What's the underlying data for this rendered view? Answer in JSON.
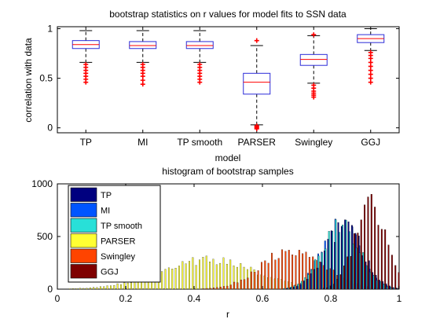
{
  "chart_data": [
    {
      "type": "boxplot",
      "title": "bootstrap statistics on r values for model fits to SSN data",
      "xlabel": "model",
      "ylabel": "correlation with data",
      "ylim": [
        -0.05,
        1.02
      ],
      "yticks": [
        0,
        0.5,
        1
      ],
      "ytick_labels": [
        "0",
        "0.5",
        "1"
      ],
      "categories": [
        "TP",
        "MI",
        "TP smooth",
        "PARSER",
        "Swingley",
        "GGJ"
      ],
      "boxes": [
        {
          "whisker_low": 0.66,
          "q1": 0.8,
          "median": 0.84,
          "q3": 0.88,
          "whisker_high": 0.98,
          "outliers": [
            0.64,
            0.61,
            0.58,
            0.55,
            0.52,
            0.49,
            0.46
          ]
        },
        {
          "whisker_low": 0.66,
          "q1": 0.8,
          "median": 0.83,
          "q3": 0.87,
          "whisker_high": 0.98,
          "outliers": [
            0.64,
            0.61,
            0.58,
            0.55,
            0.52,
            0.48,
            0.44
          ]
        },
        {
          "whisker_low": 0.66,
          "q1": 0.8,
          "median": 0.83,
          "q3": 0.87,
          "whisker_high": 0.98,
          "outliers": [
            0.64,
            0.61,
            0.58,
            0.55,
            0.52,
            0.49,
            0.46
          ]
        },
        {
          "whisker_low": 0.03,
          "q1": 0.34,
          "median": 0.46,
          "q3": 0.55,
          "whisker_high": 0.83,
          "outliers": [
            0.88,
            0.02,
            0.01,
            0.0,
            -0.01
          ]
        },
        {
          "whisker_low": 0.45,
          "q1": 0.63,
          "median": 0.69,
          "q3": 0.74,
          "whisker_high": 0.93,
          "outliers": [
            0.94,
            0.43,
            0.4,
            0.37,
            0.35,
            0.33,
            0.31
          ]
        },
        {
          "whisker_low": 0.78,
          "q1": 0.86,
          "median": 0.9,
          "q3": 0.94,
          "whisker_high": 1.0,
          "outliers": [
            0.76,
            0.73,
            0.7,
            0.66,
            0.62,
            0.58,
            0.54,
            0.5,
            0.46
          ]
        }
      ],
      "box_color": "#2b2bd8",
      "median_color": "#ff0000",
      "outlier_color": "#ff0000",
      "whisker_color": "#000000"
    },
    {
      "type": "histogram",
      "title": "histogram of bootstrap samples",
      "xlabel": "r",
      "ylabel": "",
      "xlim": [
        0,
        1
      ],
      "ylim": [
        0,
        1000
      ],
      "xticks": [
        0,
        0.2,
        0.4,
        0.6,
        0.8,
        1
      ],
      "xtick_labels": [
        "0",
        "0.2",
        "0.4",
        "0.6",
        "0.8",
        "1"
      ],
      "yticks": [
        0,
        500,
        1000
      ],
      "ytick_labels": [
        "0",
        "500",
        "1000"
      ],
      "legend_position": "top-left",
      "series": [
        {
          "name": "TP",
          "color": "#00007f",
          "distribution": {
            "mean": 0.84,
            "sd": 0.055,
            "peak": 600
          }
        },
        {
          "name": "MI",
          "color": "#0055ff",
          "distribution": {
            "mean": 0.83,
            "sd": 0.055,
            "peak": 620
          }
        },
        {
          "name": "TP smooth",
          "color": "#28e0d8",
          "distribution": {
            "mean": 0.83,
            "sd": 0.055,
            "peak": 610
          }
        },
        {
          "name": "PARSER",
          "color": "#ffff33",
          "distribution": {
            "mean": 0.44,
            "sd": 0.14,
            "peak": 270
          }
        },
        {
          "name": "Swingley",
          "color": "#ff4400",
          "distribution": {
            "mean": 0.69,
            "sd": 0.09,
            "peak": 380
          }
        },
        {
          "name": "GGJ",
          "color": "#7f0000",
          "distribution": {
            "mean": 0.91,
            "sd": 0.045,
            "peak": 800
          }
        }
      ]
    }
  ]
}
